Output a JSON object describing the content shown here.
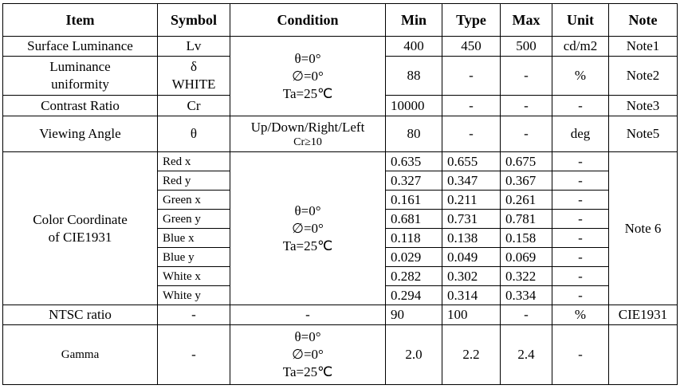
{
  "table": {
    "header": [
      "Item",
      "Symbol",
      "Condition",
      "Min",
      "Type",
      "Max",
      "Unit",
      "Note"
    ],
    "rows": [
      {
        "item": "Surface Luminance",
        "symbol": "Lv",
        "condition": [
          "θ=0°",
          "∅=0°",
          "Ta=25℃"
        ],
        "min": "400",
        "type": "450",
        "max": "500",
        "unit": "cd/m2",
        "note": "Note1"
      },
      {
        "item": [
          "Luminance",
          "uniformity"
        ],
        "symbol": [
          "δ",
          "WHITE"
        ],
        "min": "88",
        "type": "-",
        "max": "-",
        "unit": "%",
        "note": "Note2"
      },
      {
        "item": "Contrast Ratio",
        "symbol": "Cr",
        "min": "10000",
        "type": "-",
        "max": "-",
        "unit": "-",
        "note": "Note3"
      },
      {
        "item": "Viewing Angle",
        "symbol": "θ",
        "condition": [
          "Up/Down/Right/Left",
          "Cr≥10"
        ],
        "min": "80",
        "type": "-",
        "max": "-",
        "unit": "deg",
        "note": "Note5"
      }
    ],
    "color": {
      "item": [
        "Color Coordinate",
        "of CIE1931"
      ],
      "condition": [
        "θ=0°",
        "∅=0°",
        "Ta=25℃"
      ],
      "note": "Note 6",
      "rows": [
        {
          "symbol": "Red x",
          "min": "0.635",
          "type": "0.655",
          "max": "0.675",
          "unit": "-"
        },
        {
          "symbol": "Red y",
          "min": "0.327",
          "type": "0.347",
          "max": "0.367",
          "unit": "-"
        },
        {
          "symbol": "Green x",
          "min": "0.161",
          "type": "0.211",
          "max": "0.261",
          "unit": "-"
        },
        {
          "symbol": "Green y",
          "min": "0.681",
          "type": "0.731",
          "max": "0.781",
          "unit": "-"
        },
        {
          "symbol": "Blue x",
          "min": "0.118",
          "type": "0.138",
          "max": "0.158",
          "unit": "-"
        },
        {
          "symbol": "Blue y",
          "min": "0.029",
          "type": "0.049",
          "max": "0.069",
          "unit": "-"
        },
        {
          "symbol": "White x",
          "min": "0.282",
          "type": "0.302",
          "max": "0.322",
          "unit": "-"
        },
        {
          "symbol": "White y",
          "min": "0.294",
          "type": "0.314",
          "max": "0.334",
          "unit": "-"
        }
      ]
    },
    "tail": [
      {
        "item": "NTSC ratio",
        "symbol": "-",
        "condition": "-",
        "min": "90",
        "type": "100",
        "max": "-",
        "unit": "%",
        "note": "CIE1931"
      },
      {
        "item": "Gamma",
        "symbol": "-",
        "condition": [
          "θ=0°",
          "∅=0°",
          "Ta=25℃"
        ],
        "min": "2.0",
        "type": "2.2",
        "max": "2.4",
        "unit": "-"
      }
    ]
  }
}
